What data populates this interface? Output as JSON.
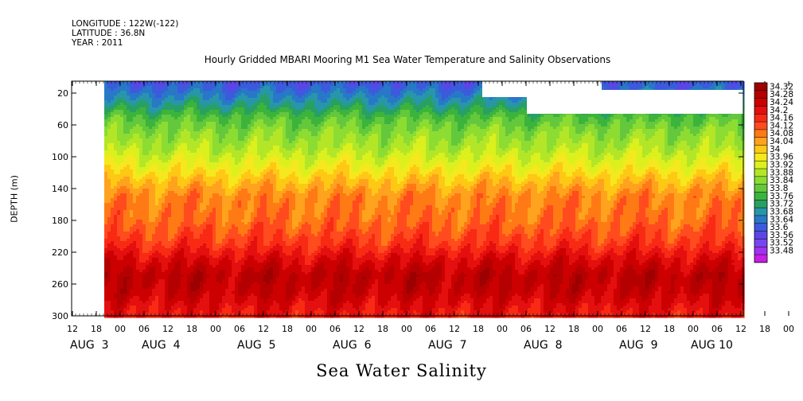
{
  "header": {
    "longitude": "LONGITUDE : 122W(-122)",
    "latitude": "LATITUDE : 36.8N",
    "year": "YEAR : 2011"
  },
  "footer_label": "Sea Water Salinity",
  "chart_data": {
    "type": "heatmap",
    "title": "Hourly Gridded MBARI Mooring M1 Sea Water Temperature and Salinity Observations",
    "ylabel": "DEPTH (m)",
    "xlabel": "",
    "y_ticks": [
      20,
      60,
      100,
      140,
      180,
      220,
      260,
      300
    ],
    "ylim": [
      300,
      5
    ],
    "y_inverted": true,
    "x_hour_ticks": [
      "12",
      "18",
      "00",
      "06",
      "12",
      "18",
      "00",
      "06",
      "12",
      "18",
      "00",
      "06",
      "12",
      "18",
      "00",
      "06",
      "12",
      "18",
      "00",
      "06",
      "12",
      "18",
      "00",
      "06",
      "12",
      "18",
      "00",
      "06",
      "12",
      "18",
      "00",
      "06",
      "12"
    ],
    "x_day_labels": [
      {
        "label": "AUG  3",
        "hour_index": 0
      },
      {
        "label": "AUG  4",
        "hour_index": 3
      },
      {
        "label": "AUG  5",
        "hour_index": 7
      },
      {
        "label": "AUG  6",
        "hour_index": 11
      },
      {
        "label": "AUG  7",
        "hour_index": 15
      },
      {
        "label": "AUG  8",
        "hour_index": 19
      },
      {
        "label": "AUG  9",
        "hour_index": 23
      },
      {
        "label": "AUG 10",
        "hour_index": 26
      }
    ],
    "colorbar": {
      "levels": [
        34.32,
        34.28,
        34.24,
        34.2,
        34.16,
        34.12,
        34.08,
        34.04,
        34,
        33.96,
        33.92,
        33.88,
        33.84,
        33.8,
        33.76,
        33.72,
        33.68,
        33.64,
        33.6,
        33.56,
        33.52,
        33.48
      ],
      "colors": [
        "#9c0000",
        "#b40000",
        "#cc0000",
        "#e40f0f",
        "#f82a14",
        "#ff4b1e",
        "#ff7a14",
        "#ffa21e",
        "#ffc814",
        "#f5e81e",
        "#dcf01e",
        "#b4e628",
        "#8cdc32",
        "#64c83c",
        "#3cb43c",
        "#28a064",
        "#2896aa",
        "#2878c8",
        "#3c5adc",
        "#5a46e6",
        "#7846f0",
        "#a032f0",
        "#c81ee6"
      ]
    },
    "depth_profile": [
      {
        "depth": 10,
        "salinity": 33.62
      },
      {
        "depth": 30,
        "salinity": 33.7
      },
      {
        "depth": 50,
        "salinity": 33.8
      },
      {
        "depth": 70,
        "salinity": 33.86
      },
      {
        "depth": 90,
        "salinity": 33.9
      },
      {
        "depth": 110,
        "salinity": 33.96
      },
      {
        "depth": 130,
        "salinity": 34.03
      },
      {
        "depth": 150,
        "salinity": 34.09
      },
      {
        "depth": 180,
        "salinity": 34.11
      },
      {
        "depth": 210,
        "salinity": 34.17
      },
      {
        "depth": 230,
        "salinity": 34.24
      },
      {
        "depth": 250,
        "salinity": 34.29
      },
      {
        "depth": 270,
        "salinity": 34.27
      },
      {
        "depth": 300,
        "salinity": 34.2
      }
    ]
  }
}
